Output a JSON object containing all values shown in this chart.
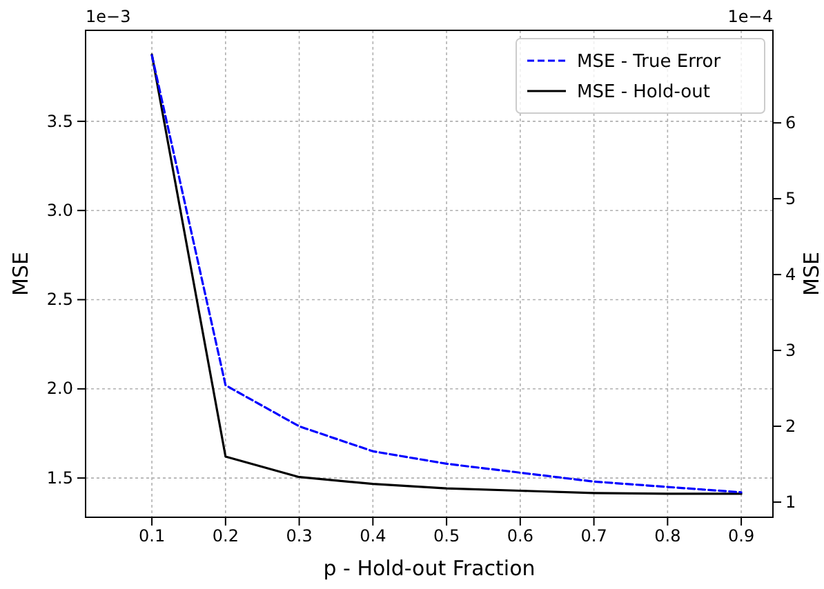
{
  "chart_data": {
    "type": "line",
    "xlabel": "p - Hold-out Fraction",
    "ylabel": "MSE",
    "y2label": "MSE",
    "x": [
      0.1,
      0.2,
      0.3,
      0.4,
      0.5,
      0.6,
      0.7,
      0.8,
      0.9
    ],
    "series": [
      {
        "name": "MSE - True Error",
        "color": "#0000ff",
        "line_style": "dashed",
        "values": [
          3.87,
          2.02,
          1.79,
          1.65,
          1.58,
          1.53,
          1.48,
          1.45,
          1.42
        ]
      },
      {
        "name": "MSE - Hold-out",
        "color": "#000000",
        "line_style": "solid",
        "axis": "y2",
        "values": [
          6.9,
          1.6,
          1.33,
          1.24,
          1.18,
          1.15,
          1.12,
          1.11,
          1.11
        ]
      }
    ],
    "xlim": [
      0.01,
      0.943
    ],
    "xticks": [
      0.1,
      0.2,
      0.3,
      0.4,
      0.5,
      0.6,
      0.7,
      0.8,
      0.9
    ],
    "ylim": [
      1.28,
      4.01
    ],
    "yticks": [
      {
        "value": 1.5,
        "label": "1.5"
      },
      {
        "value": 2,
        "label": "2.0"
      },
      {
        "value": 2.5,
        "label": "2.5"
      },
      {
        "value": 3,
        "label": "3.0"
      },
      {
        "value": 3.5,
        "label": "3.5"
      }
    ],
    "y2lim": [
      0.8,
      7.22
    ],
    "y2ticks": [
      1,
      2,
      3,
      4,
      5,
      6
    ],
    "annotations": [
      "1e−3",
      "1e−4"
    ],
    "grid": true,
    "legend": "top right"
  }
}
